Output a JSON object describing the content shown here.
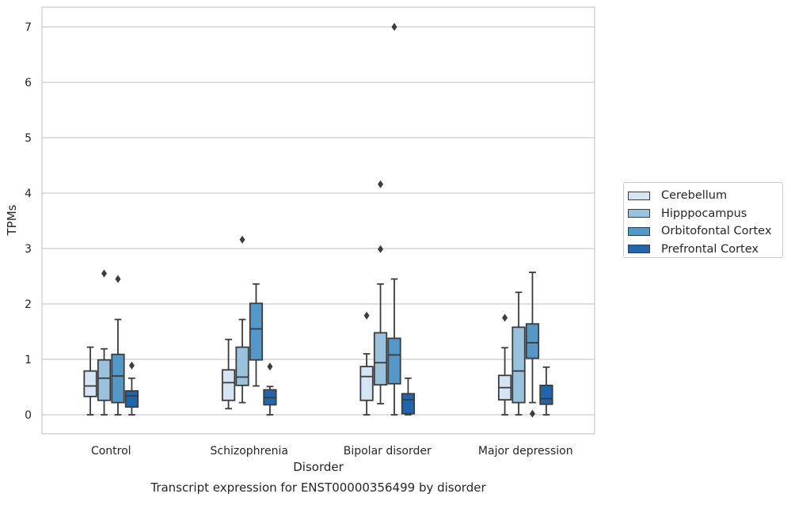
{
  "chart_data": {
    "type": "boxplot",
    "title": "Transcript expression for ENST00000356499 by disorder",
    "xlabel": "Disorder",
    "ylabel": "TPMs",
    "ylim": [
      -0.33,
      7.35
    ],
    "yticks": [
      0,
      1,
      2,
      3,
      4,
      5,
      6,
      7
    ],
    "grid": "horizontal",
    "legend_position": "right",
    "categories": [
      "Control",
      "Schizophrenia",
      "Bipolar disorder",
      "Major depression"
    ],
    "series": [
      {
        "name": "Cerebellum",
        "color": "#d6e5f4",
        "boxes": [
          {
            "whisker_low": 0.0,
            "q1": 0.33,
            "median": 0.52,
            "q3": 0.79,
            "whisker_high": 1.22,
            "outliers": []
          },
          {
            "whisker_low": 0.11,
            "q1": 0.26,
            "median": 0.58,
            "q3": 0.81,
            "whisker_high": 1.36,
            "outliers": []
          },
          {
            "whisker_low": 0.0,
            "q1": 0.26,
            "median": 0.69,
            "q3": 0.87,
            "whisker_high": 1.1,
            "outliers": [
              1.79
            ]
          },
          {
            "whisker_low": 0.0,
            "q1": 0.27,
            "median": 0.49,
            "q3": 0.71,
            "whisker_high": 1.21,
            "outliers": [
              1.75
            ]
          }
        ]
      },
      {
        "name": "Hipppocampus",
        "color": "#9ac2dc",
        "boxes": [
          {
            "whisker_low": 0.0,
            "q1": 0.26,
            "median": 0.66,
            "q3": 0.99,
            "whisker_high": 1.19,
            "outliers": [
              2.55
            ]
          },
          {
            "whisker_low": 0.22,
            "q1": 0.53,
            "median": 0.68,
            "q3": 1.22,
            "whisker_high": 1.72,
            "outliers": [
              3.16
            ]
          },
          {
            "whisker_low": 0.2,
            "q1": 0.54,
            "median": 0.94,
            "q3": 1.48,
            "whisker_high": 2.36,
            "outliers": [
              2.99,
              4.16
            ]
          },
          {
            "whisker_low": 0.0,
            "q1": 0.22,
            "median": 0.79,
            "q3": 1.58,
            "whisker_high": 2.21,
            "outliers": []
          }
        ]
      },
      {
        "name": "Orbitofontal Cortex",
        "color": "#5598c8",
        "boxes": [
          {
            "whisker_low": 0.0,
            "q1": 0.22,
            "median": 0.7,
            "q3": 1.09,
            "whisker_high": 1.72,
            "outliers": [
              2.45
            ]
          },
          {
            "whisker_low": 0.52,
            "q1": 0.99,
            "median": 1.55,
            "q3": 2.01,
            "whisker_high": 2.36,
            "outliers": []
          },
          {
            "whisker_low": 0.0,
            "q1": 0.56,
            "median": 1.08,
            "q3": 1.38,
            "whisker_high": 2.45,
            "outliers": [
              7.0
            ]
          },
          {
            "whisker_low": 0.22,
            "q1": 1.02,
            "median": 1.3,
            "q3": 1.64,
            "whisker_high": 2.57,
            "outliers": [
              0.02
            ]
          }
        ]
      },
      {
        "name": "Prefrontal Cortex",
        "color": "#2166ac",
        "boxes": [
          {
            "whisker_low": 0.0,
            "q1": 0.14,
            "median": 0.34,
            "q3": 0.43,
            "whisker_high": 0.66,
            "outliers": [
              0.89
            ]
          },
          {
            "whisker_low": 0.0,
            "q1": 0.18,
            "median": 0.31,
            "q3": 0.45,
            "whisker_high": 0.51,
            "outliers": [
              0.87
            ]
          },
          {
            "whisker_low": 0.0,
            "q1": 0.02,
            "median": 0.27,
            "q3": 0.38,
            "whisker_high": 0.66,
            "outliers": []
          },
          {
            "whisker_low": 0.0,
            "q1": 0.19,
            "median": 0.29,
            "q3": 0.53,
            "whisker_high": 0.86,
            "outliers": []
          }
        ]
      }
    ]
  }
}
